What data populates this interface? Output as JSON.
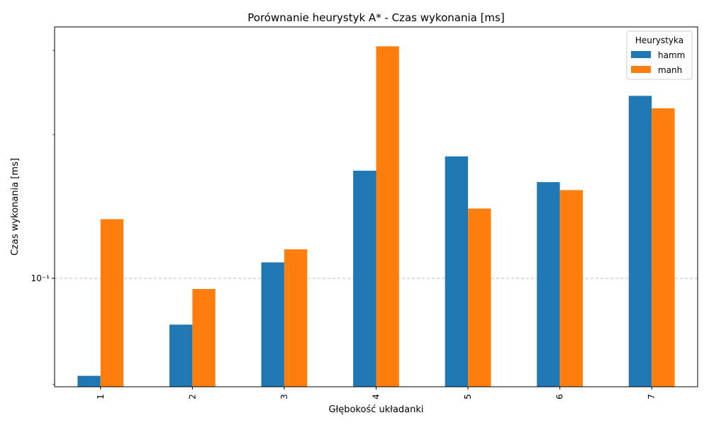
{
  "chart_data": {
    "type": "bar",
    "title": "Porównanie heurystyk A* - Czas wykonania [ms]",
    "xlabel": "Głębokość układanki",
    "ylabel": "Czas wykonania [ms]",
    "yscale": "log",
    "ylim": [
      0.0593,
      0.336
    ],
    "y_tick_labels": [
      {
        "value": 0.1,
        "label": "10⁻¹"
      }
    ],
    "y_minor_ticks": [
      0.06,
      0.2,
      0.3
    ],
    "grid": "horizontal dashed at major ticks",
    "categories": [
      "1",
      "2",
      "3",
      "4",
      "5",
      "6",
      "7"
    ],
    "legend": {
      "title": "Heurystyka",
      "placement": "top-right"
    },
    "series": [
      {
        "name": "hamm",
        "color": "#1f77b4",
        "values": [
          0.0625,
          0.08,
          0.108,
          0.168,
          0.18,
          0.159,
          0.241
        ]
      },
      {
        "name": "manh",
        "color": "#ff7f0e",
        "values": [
          0.133,
          0.095,
          0.115,
          0.306,
          0.14,
          0.153,
          0.227
        ]
      }
    ]
  }
}
